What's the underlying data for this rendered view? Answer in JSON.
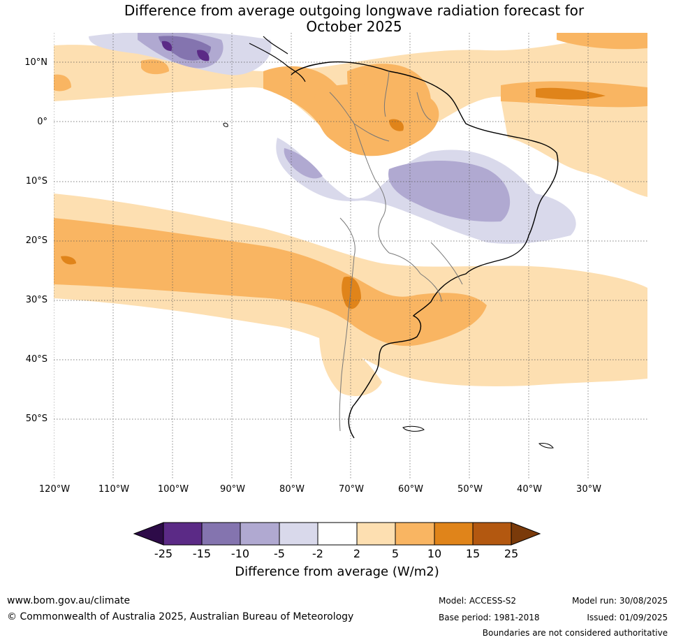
{
  "title": {
    "line1": "Difference from average outgoing longwave radiation forecast for",
    "line2": "October 2025"
  },
  "map": {
    "lat_labels": [
      "10°N",
      "0°",
      "10°S",
      "20°S",
      "30°S",
      "40°S",
      "50°S"
    ],
    "lon_labels": [
      "120°W",
      "110°W",
      "100°W",
      "90°W",
      "80°W",
      "70°W",
      "60°W",
      "50°W",
      "40°W",
      "30°W"
    ]
  },
  "colorbar": {
    "ticks": [
      "-25",
      "-15",
      "-10",
      "-5",
      "-2",
      "2",
      "5",
      "10",
      "15",
      "25"
    ],
    "colors": {
      "lt_-25": "#2d0b48",
      "-25_-15": "#5b2a86",
      "-15_-10": "#8474af",
      "-10_-5": "#b0a9d1",
      "-5_-2": "#d9d9eb",
      "-2_2": "#ffffff",
      "2_5": "#fddfb1",
      "5_10": "#f9b562",
      "10_15": "#e0841a",
      "15_25": "#b35810",
      "gt_25": "#7a3a0a"
    },
    "label": "Difference from average (W/m2)"
  },
  "footer": {
    "website": "www.bom.gov.au/climate",
    "copyright": "© Commonwealth of Australia 2025, Australian Bureau of Meteorology",
    "model": "Model: ACCESS-S2",
    "base_period": "Base period: 1981-2018",
    "model_run": "Model run: 30/08/2025",
    "issued": "Issued: 01/09/2025",
    "disclaimer": "Boundaries are not considered authoritative"
  }
}
